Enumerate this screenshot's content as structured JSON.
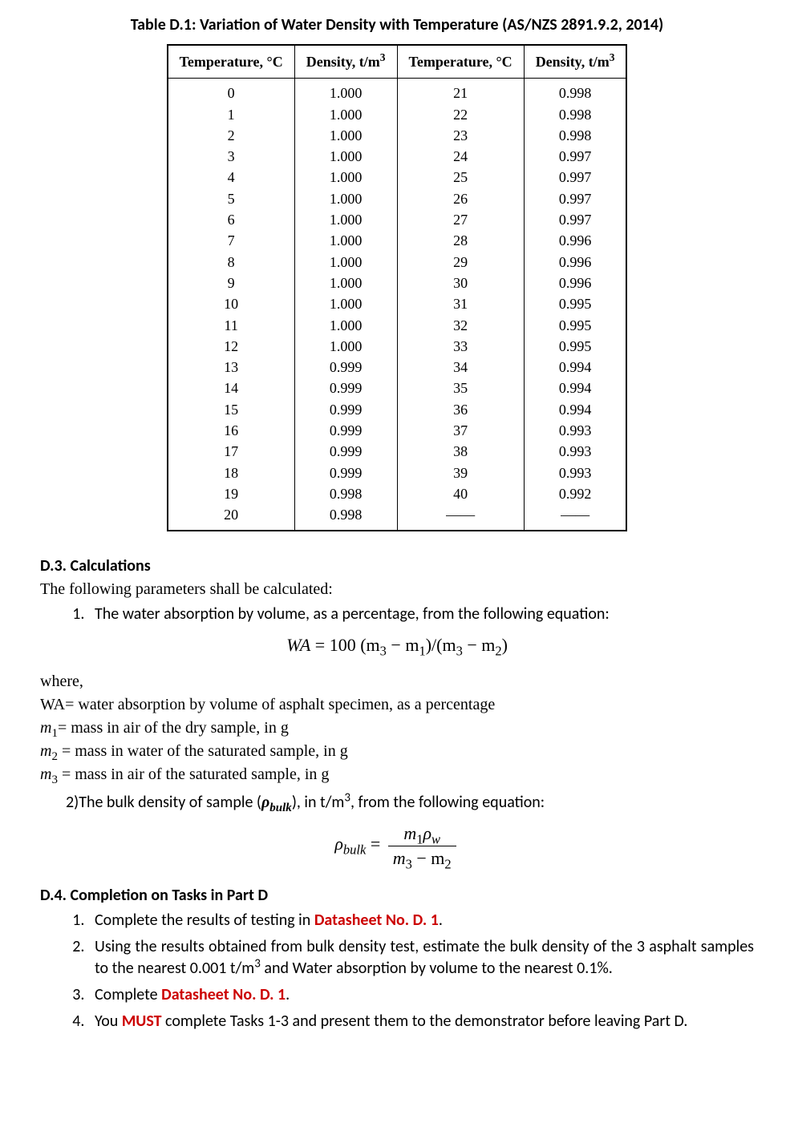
{
  "table": {
    "title": "Table D.1: Variation of Water Density with Temperature (AS/NZS 2891.9.2, 2014)",
    "col1_label_a": "Temperature, °C",
    "col1_label_b": "Density, t/m",
    "col1_label_b_sup": "3",
    "col2_label_a": "Temperature, °C",
    "col2_label_b": "Density, t/m",
    "col2_label_b_sup": "3",
    "rows": [
      {
        "t1": "0",
        "d1": "1.000",
        "t2": "21",
        "d2": "0.998"
      },
      {
        "t1": "1",
        "d1": "1.000",
        "t2": "22",
        "d2": "0.998"
      },
      {
        "t1": "2",
        "d1": "1.000",
        "t2": "23",
        "d2": "0.998"
      },
      {
        "t1": "3",
        "d1": "1.000",
        "t2": "24",
        "d2": "0.997"
      },
      {
        "t1": "4",
        "d1": "1.000",
        "t2": "25",
        "d2": "0.997"
      },
      {
        "t1": "5",
        "d1": "1.000",
        "t2": "26",
        "d2": "0.997"
      },
      {
        "t1": "6",
        "d1": "1.000",
        "t2": "27",
        "d2": "0.997"
      },
      {
        "t1": "7",
        "d1": "1.000",
        "t2": "28",
        "d2": "0.996"
      },
      {
        "t1": "8",
        "d1": "1.000",
        "t2": "29",
        "d2": "0.996"
      },
      {
        "t1": "9",
        "d1": "1.000",
        "t2": "30",
        "d2": "0.996"
      },
      {
        "t1": "10",
        "d1": "1.000",
        "t2": "31",
        "d2": "0.995"
      },
      {
        "t1": "11",
        "d1": "1.000",
        "t2": "32",
        "d2": "0.995"
      },
      {
        "t1": "12",
        "d1": "1.000",
        "t2": "33",
        "d2": "0.995"
      },
      {
        "t1": "13",
        "d1": "0.999",
        "t2": "34",
        "d2": "0.994"
      },
      {
        "t1": "14",
        "d1": "0.999",
        "t2": "35",
        "d2": "0.994"
      },
      {
        "t1": "15",
        "d1": "0.999",
        "t2": "36",
        "d2": "0.994"
      },
      {
        "t1": "16",
        "d1": "0.999",
        "t2": "37",
        "d2": "0.993"
      },
      {
        "t1": "17",
        "d1": "0.999",
        "t2": "38",
        "d2": "0.993"
      },
      {
        "t1": "18",
        "d1": "0.999",
        "t2": "39",
        "d2": "0.993"
      },
      {
        "t1": "19",
        "d1": "0.998",
        "t2": "40",
        "d2": "0.992"
      },
      {
        "t1": "20",
        "d1": "0.998",
        "t2": "——",
        "d2": "——"
      }
    ]
  },
  "sections": {
    "d3_head": "D.3. Calculations",
    "d3_intro": "The following parameters shall be calculated:",
    "d3_item1": "The water absorption by volume, as a percentage, from the following equation:",
    "wa_eq_left": "WA",
    "wa_eq_right_a": " = 100 (m",
    "wa_eq_right_b": " − m",
    "wa_eq_right_c": ")/(m",
    "wa_eq_right_d": " − m",
    "wa_eq_right_e": ")",
    "where": "where,",
    "def_wa": "WA= water absorption by volume of asphalt specimen, as a percentage",
    "def_m1_pre": "m",
    "def_m1_post": "= mass in air of the dry sample, in g",
    "def_m2_pre": "m",
    "def_m2_post": " = mass in water of the saturated sample, in g",
    "def_m3_pre": "m",
    "def_m3_post": " = mass in air of the saturated sample, in g",
    "d3_item2_pre": "2)The bulk density of sample (",
    "rho_bulk": "ρ",
    "d3_item2_bulk": "bulk",
    "d3_item2_post_a": "), in t/m",
    "d3_item2_post_b": ", from the following equation:",
    "bulk_eq_lhs_rho": "ρ",
    "bulk_eq_lhs_sub": "bulk",
    "bulk_eq_num_a": "m",
    "bulk_eq_num_b": "ρ",
    "bulk_eq_den_a": "m",
    "bulk_eq_den_b": " − m",
    "d4_head": "D.4. Completion on Tasks in Part D",
    "task1_a": "Complete the results of testing in ",
    "task1_b": "Datasheet No. D. 1",
    "task1_c": ".",
    "task2": "Using the results obtained from bulk density test, estimate the bulk density of the 3 asphalt samples to the nearest 0.001 t/m",
    "task2_b": " and Water absorption by volume to the nearest 0.1%.",
    "task3_a": " Complete ",
    "task3_b": "Datasheet No. D. 1",
    "task3_c": ".",
    "task4_a": "You ",
    "task4_b": "MUST",
    "task4_c": " complete Tasks 1-3 and present them to the demonstrator before leaving Part D."
  }
}
